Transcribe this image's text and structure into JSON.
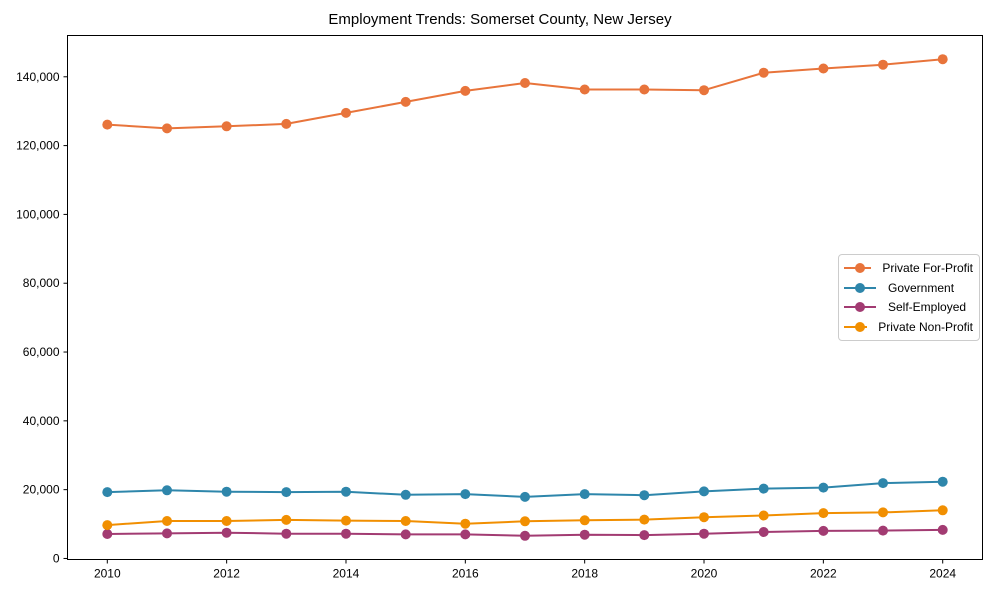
{
  "figure": {
    "background": "#ffffff",
    "border_color": "#000000"
  },
  "chart_data": {
    "type": "line",
    "title": "Employment Trends: Somerset County, New Jersey",
    "xlabel": "",
    "ylabel": "",
    "grid": false,
    "marker": "o",
    "legend_position": "center right",
    "x": [
      2010,
      2011,
      2012,
      2013,
      2014,
      2015,
      2016,
      2017,
      2018,
      2019,
      2020,
      2021,
      2022,
      2023,
      2024
    ],
    "series": [
      {
        "name": "Private For-Profit",
        "color": "#E8743B",
        "values": [
          126100,
          125000,
          125600,
          126300,
          129500,
          132700,
          135900,
          138200,
          136300,
          136300,
          136100,
          141200,
          142400,
          143500,
          145100
        ]
      },
      {
        "name": "Government",
        "color": "#2E86AB",
        "values": [
          19300,
          19800,
          19400,
          19300,
          19400,
          18500,
          18700,
          17900,
          18700,
          18400,
          19500,
          20300,
          20600,
          21900,
          22300
        ]
      },
      {
        "name": "Self-Employed",
        "color": "#A23B72",
        "values": [
          7100,
          7300,
          7500,
          7200,
          7200,
          7000,
          7000,
          6600,
          6900,
          6800,
          7200,
          7700,
          8000,
          8100,
          8300
        ]
      },
      {
        "name": "Private Non-Profit",
        "color": "#F18F01",
        "values": [
          9700,
          10900,
          10900,
          11200,
          11000,
          10900,
          10100,
          10800,
          11100,
          11300,
          12000,
          12500,
          13200,
          13400,
          14000
        ]
      }
    ],
    "xlim": [
      2010,
      2024
    ],
    "ylim": [
      -300,
      152000
    ],
    "xticks": {
      "values": [
        2010,
        2012,
        2014,
        2016,
        2018,
        2020,
        2022,
        2024
      ],
      "labels": [
        "2010",
        "2012",
        "2014",
        "2016",
        "2018",
        "2020",
        "2022",
        "2024"
      ]
    },
    "yticks": {
      "values": [
        0,
        20000,
        40000,
        60000,
        80000,
        100000,
        120000,
        140000
      ],
      "labels": [
        "0",
        "20,000",
        "40,000",
        "60,000",
        "80,000",
        "100,000",
        "120,000",
        "140,000"
      ]
    }
  }
}
